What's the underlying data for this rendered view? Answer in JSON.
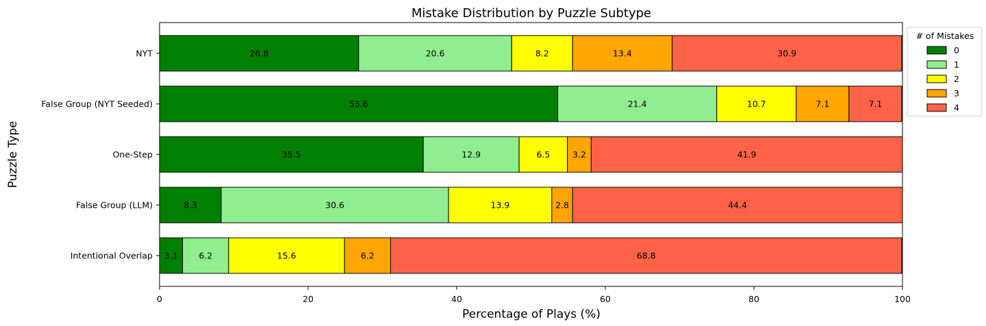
{
  "chart_data": {
    "type": "bar",
    "orientation": "horizontal",
    "stacked": true,
    "title": "Mistake Distribution by Puzzle Subtype",
    "xlabel": "Percentage of Plays (%)",
    "ylabel": "Puzzle Type",
    "xlim": [
      0,
      100
    ],
    "xticks": [
      "0",
      "20",
      "40",
      "60",
      "80",
      "100"
    ],
    "grid": false,
    "legend_position": "outside top-right",
    "legend_title": "# of Mistakes",
    "categories": [
      "NYT",
      "False Group (NYT Seeded)",
      "One-Step",
      "False Group (LLM)",
      "Intentional Overlap"
    ],
    "series": [
      {
        "name": "0",
        "color": "#008000",
        "values": [
          26.8,
          53.6,
          35.5,
          8.3,
          3.1
        ]
      },
      {
        "name": "1",
        "color": "#90EE90",
        "values": [
          20.6,
          21.4,
          12.9,
          30.6,
          6.2
        ]
      },
      {
        "name": "2",
        "color": "#FFFF00",
        "values": [
          8.2,
          10.7,
          6.5,
          13.9,
          15.6
        ]
      },
      {
        "name": "3",
        "color": "#FFA500",
        "values": [
          13.4,
          7.1,
          3.2,
          2.8,
          6.2
        ]
      },
      {
        "name": "4",
        "color": "#FF6347",
        "values": [
          30.9,
          7.1,
          41.9,
          44.4,
          68.8
        ]
      }
    ]
  }
}
